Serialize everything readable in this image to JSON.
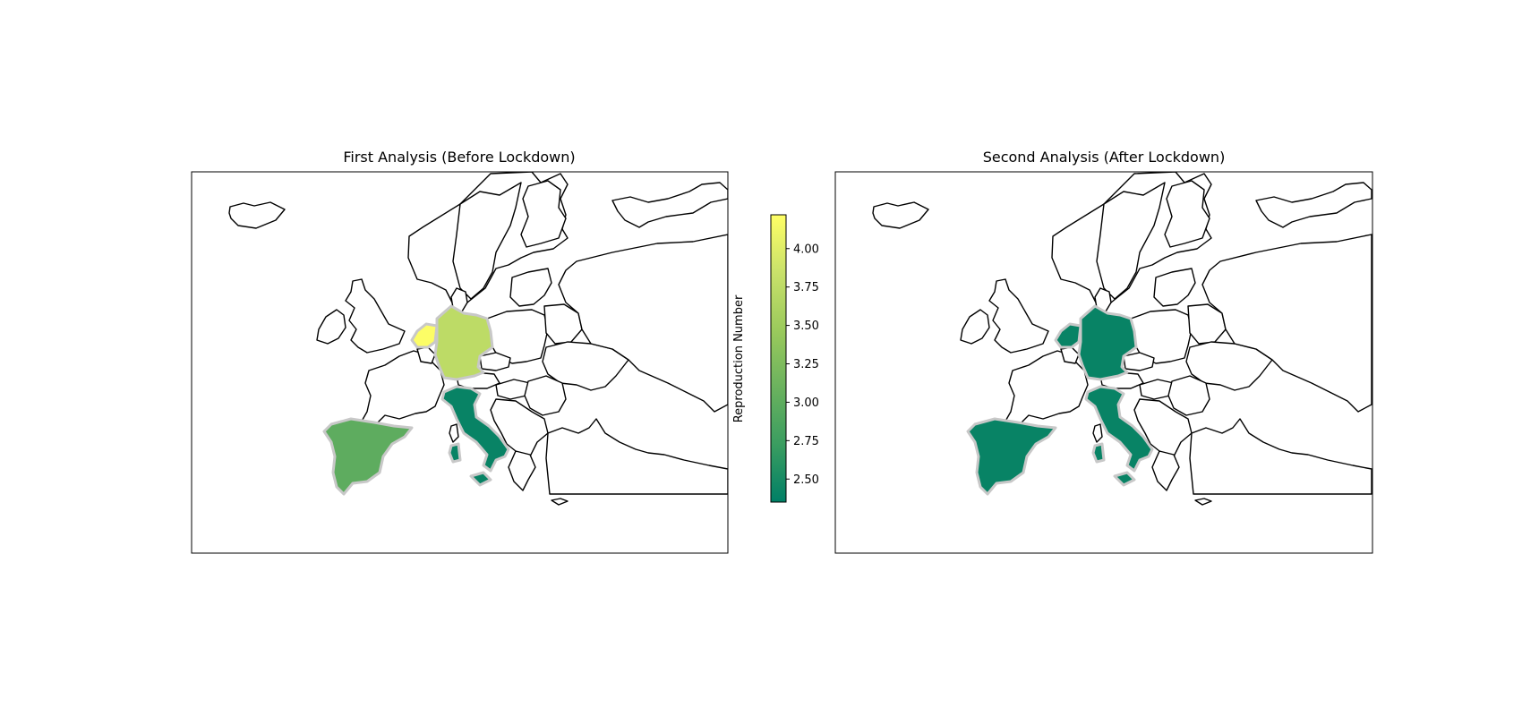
{
  "maps": [
    {
      "title": "First Analysis (Before Lockdown)",
      "values": {
        "netherlands": 4.2,
        "germany": 3.75,
        "spain": 3.0,
        "italy": 2.4
      }
    },
    {
      "title": "Second Analysis (After Lockdown)",
      "values": {
        "netherlands": 2.4,
        "germany": 2.4,
        "spain": 2.4,
        "italy": 2.4
      }
    }
  ],
  "colorbar": {
    "label": "Reproduction Number",
    "min": 2.35,
    "max": 4.22,
    "ticks": [
      "2.50",
      "2.75",
      "3.00",
      "3.25",
      "3.50",
      "3.75",
      "4.00"
    ],
    "colormap": [
      "#007f66",
      "#3a9d60",
      "#6bb25e",
      "#9bca5c",
      "#c9e16a",
      "#ffff66"
    ]
  },
  "colors": {
    "highlight_border": "#c8c8c8",
    "land_fill": "#ffffff"
  }
}
